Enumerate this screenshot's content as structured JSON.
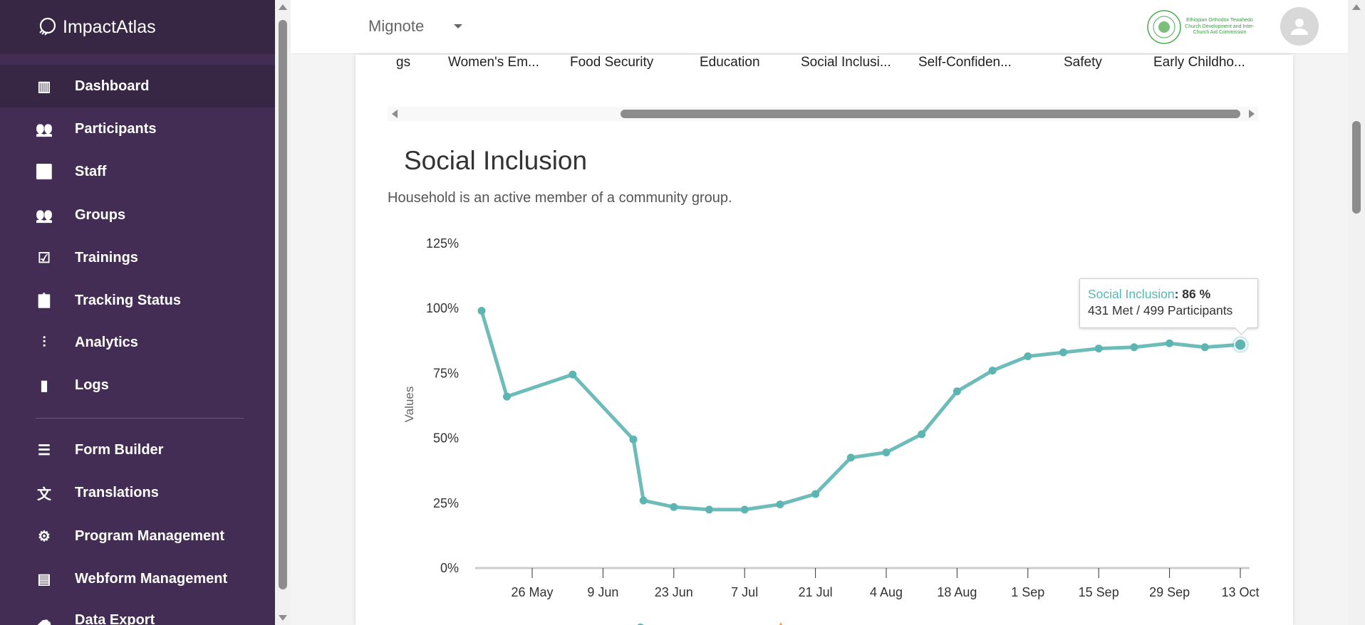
{
  "app": {
    "brand": "ImpactAtlas",
    "program": "Mignote",
    "org_logo_text": "Ethiopian Orthodox Tewahedo Church Development and Inter-Church Aid Commission"
  },
  "sidebar": {
    "items": [
      {
        "label": "Dashboard",
        "icon": "bar-chart-icon",
        "active": true
      },
      {
        "label": "Participants",
        "icon": "people-icon"
      },
      {
        "label": "Staff",
        "icon": "staff-icon"
      },
      {
        "label": "Groups",
        "icon": "groups-icon"
      },
      {
        "label": "Trainings",
        "icon": "clipboard-check-icon"
      },
      {
        "label": "Tracking Status",
        "icon": "clipboard-icon"
      },
      {
        "label": "Analytics",
        "icon": "waveform-icon"
      },
      {
        "label": "Logs",
        "icon": "file-icon"
      },
      {
        "label": "Form Builder",
        "icon": "list-icon"
      },
      {
        "label": "Translations",
        "icon": "translate-icon"
      },
      {
        "label": "Program Management",
        "icon": "gear-icon"
      },
      {
        "label": "Webform Management",
        "icon": "document-icon"
      },
      {
        "label": "Data Export",
        "icon": "cloud-download-icon"
      }
    ]
  },
  "tabs": [
    "gs",
    "Women's Em...",
    "Food Security",
    "Education",
    "Social Inclusi...",
    "Self-Confiden...",
    "Safety",
    "Early Childho..."
  ],
  "section": {
    "title": "Social Inclusion",
    "subtitle": "Household is an active member of a community group."
  },
  "tooltip": {
    "series": "Social Inclusion",
    "value": ": 86 %",
    "detail": "431 Met / 499 Participants"
  },
  "chart_data": {
    "type": "line",
    "ylabel": "Values",
    "ylim": [
      0,
      125
    ],
    "yticks": [
      "0%",
      "25%",
      "50%",
      "75%",
      "100%",
      "125%"
    ],
    "xticks": [
      "26 May",
      "9 Jun",
      "23 Jun",
      "7 Jul",
      "21 Jul",
      "4 Aug",
      "18 Aug",
      "1 Sep",
      "15 Sep",
      "29 Sep",
      "13 Oct"
    ],
    "color": "#5db5b2",
    "legend_marker_colors": [
      "#5db5b2",
      "#f5a35c"
    ],
    "series": [
      {
        "name": "Social Inclusion",
        "points": [
          [
            "16 May",
            99
          ],
          [
            "21 May",
            66
          ],
          [
            "3 Jun",
            74.5
          ],
          [
            "15 Jun",
            49.5
          ],
          [
            "17 Jun",
            26
          ],
          [
            "23 Jun",
            23.5
          ],
          [
            "30 Jun",
            22.5
          ],
          [
            "7 Jul",
            22.5
          ],
          [
            "14 Jul",
            24.5
          ],
          [
            "21 Jul",
            28.5
          ],
          [
            "28 Jul",
            42.5
          ],
          [
            "4 Aug",
            44.5
          ],
          [
            "11 Aug",
            51.5
          ],
          [
            "18 Aug",
            68
          ],
          [
            "25 Aug",
            76
          ],
          [
            "1 Sep",
            81.5
          ],
          [
            "8 Sep",
            83
          ],
          [
            "15 Sep",
            84.5
          ],
          [
            "22 Sep",
            85
          ],
          [
            "29 Sep",
            86.5
          ],
          [
            "6 Oct",
            85
          ],
          [
            "13 Oct",
            86
          ]
        ]
      }
    ]
  }
}
